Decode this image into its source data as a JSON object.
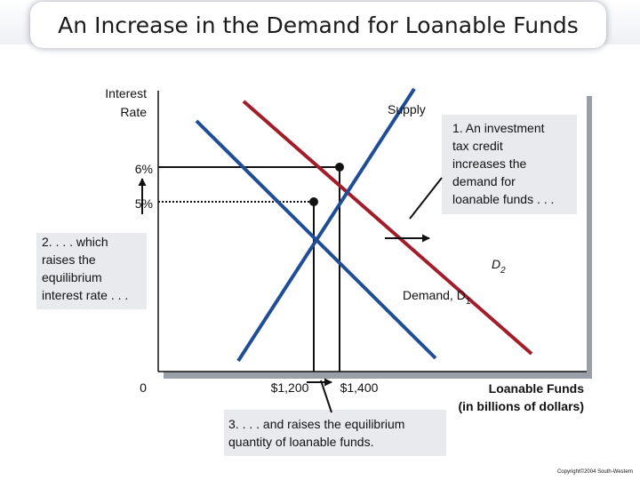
{
  "slide": {
    "title": "An Increase in the Demand for Loanable Funds",
    "copyright": "Copyright©2004  South-Western"
  },
  "chart_data": {
    "type": "line",
    "xlabel": [
      "Loanable Funds",
      "(in billions of dollars)"
    ],
    "ylabel": [
      "Interest",
      "Rate"
    ],
    "origin_label": "0",
    "x_ticks": [
      {
        "label": "$1,200",
        "value": 1200
      },
      {
        "label": "$1,400",
        "value": 1400
      }
    ],
    "y_ticks": [
      {
        "label": "6%",
        "value": 6
      },
      {
        "label": "5%",
        "value": 5
      }
    ],
    "series": [
      {
        "name": "Supply",
        "color": "#a21c2a"
      },
      {
        "name": "Demand, D1",
        "color": "#1f4e96"
      },
      {
        "name": "D2",
        "color": "#1f4e96"
      }
    ],
    "equilibria": [
      {
        "x": 1200,
        "y": 5
      },
      {
        "x": 1400,
        "y": 6
      }
    ],
    "curve_labels": {
      "supply": "Supply",
      "d2": "D",
      "d2_sub": "2",
      "d1": "Demand, D",
      "d1_sub": "1"
    }
  },
  "annotations": {
    "callout1": [
      "1. An investment",
      "tax credit",
      "increases the",
      "demand for",
      "loanable funds . . ."
    ],
    "callout2": [
      "2. . . . which",
      "raises the",
      "equilibrium",
      "interest rate . . ."
    ],
    "callout3": [
      "3. . . . and raises the equilibrium",
      "quantity of loanable funds."
    ]
  }
}
